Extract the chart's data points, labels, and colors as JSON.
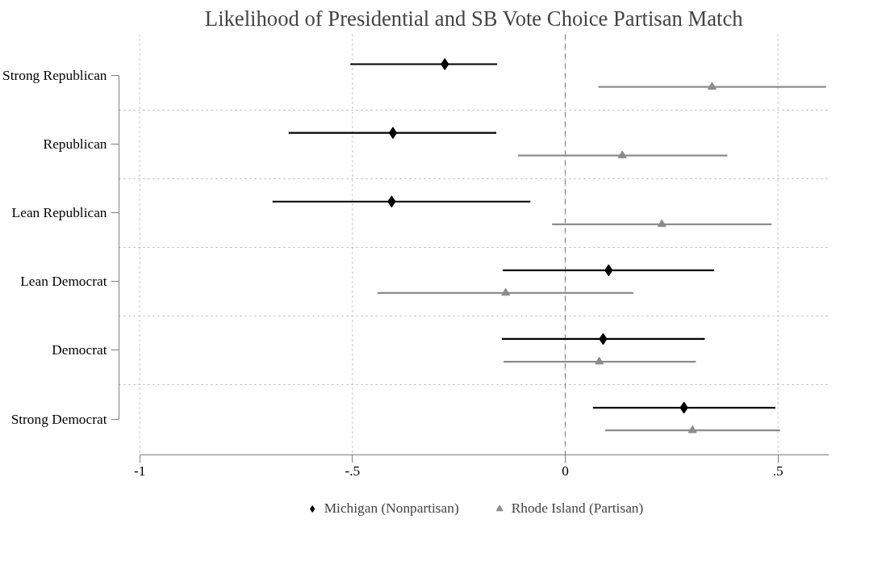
{
  "chart_data": {
    "type": "scatter",
    "orientation": "horizontal",
    "title": "Likelihood of Presidential and SB Vote Choice Partisan Match",
    "categories": [
      "Strong Republican",
      "Republican",
      "Lean Republican",
      "Lean Democrat",
      "Democrat",
      "Strong Democrat"
    ],
    "series": [
      {
        "name": "Michigan (Nonpartisan)",
        "color": "#000000",
        "marker": "diamond",
        "values": [
          -0.283,
          -0.405,
          -0.408,
          0.102,
          0.089,
          0.279
        ],
        "errors": [
          [
            -0.505,
            -0.16
          ],
          [
            -0.65,
            -0.162
          ],
          [
            -0.688,
            -0.082
          ],
          [
            -0.147,
            0.35
          ],
          [
            -0.149,
            0.328
          ],
          [
            0.065,
            0.494
          ]
        ]
      },
      {
        "name": "Rhode Island (Partisan)",
        "color": "#8c8c8c",
        "marker": "triangle",
        "values": [
          0.345,
          0.134,
          0.227,
          -0.14,
          0.08,
          0.299
        ],
        "errors": [
          [
            0.078,
            0.613
          ],
          [
            -0.111,
            0.381
          ],
          [
            -0.031,
            0.485
          ],
          [
            -0.441,
            0.16
          ],
          [
            -0.145,
            0.307
          ],
          [
            0.094,
            0.505
          ]
        ]
      }
    ],
    "xlim": [
      -1,
      0.62
    ],
    "xticks": [
      {
        "value": -1,
        "label": "-1"
      },
      {
        "value": -0.5,
        "label": "-.5"
      },
      0,
      {
        "value": 0.5,
        "label": ".5"
      }
    ],
    "ref_lines": [
      {
        "axis": "x",
        "value": 0,
        "color": "#808080",
        "line_style": "dashed"
      }
    ],
    "grid": true,
    "legend": "bottom"
  }
}
